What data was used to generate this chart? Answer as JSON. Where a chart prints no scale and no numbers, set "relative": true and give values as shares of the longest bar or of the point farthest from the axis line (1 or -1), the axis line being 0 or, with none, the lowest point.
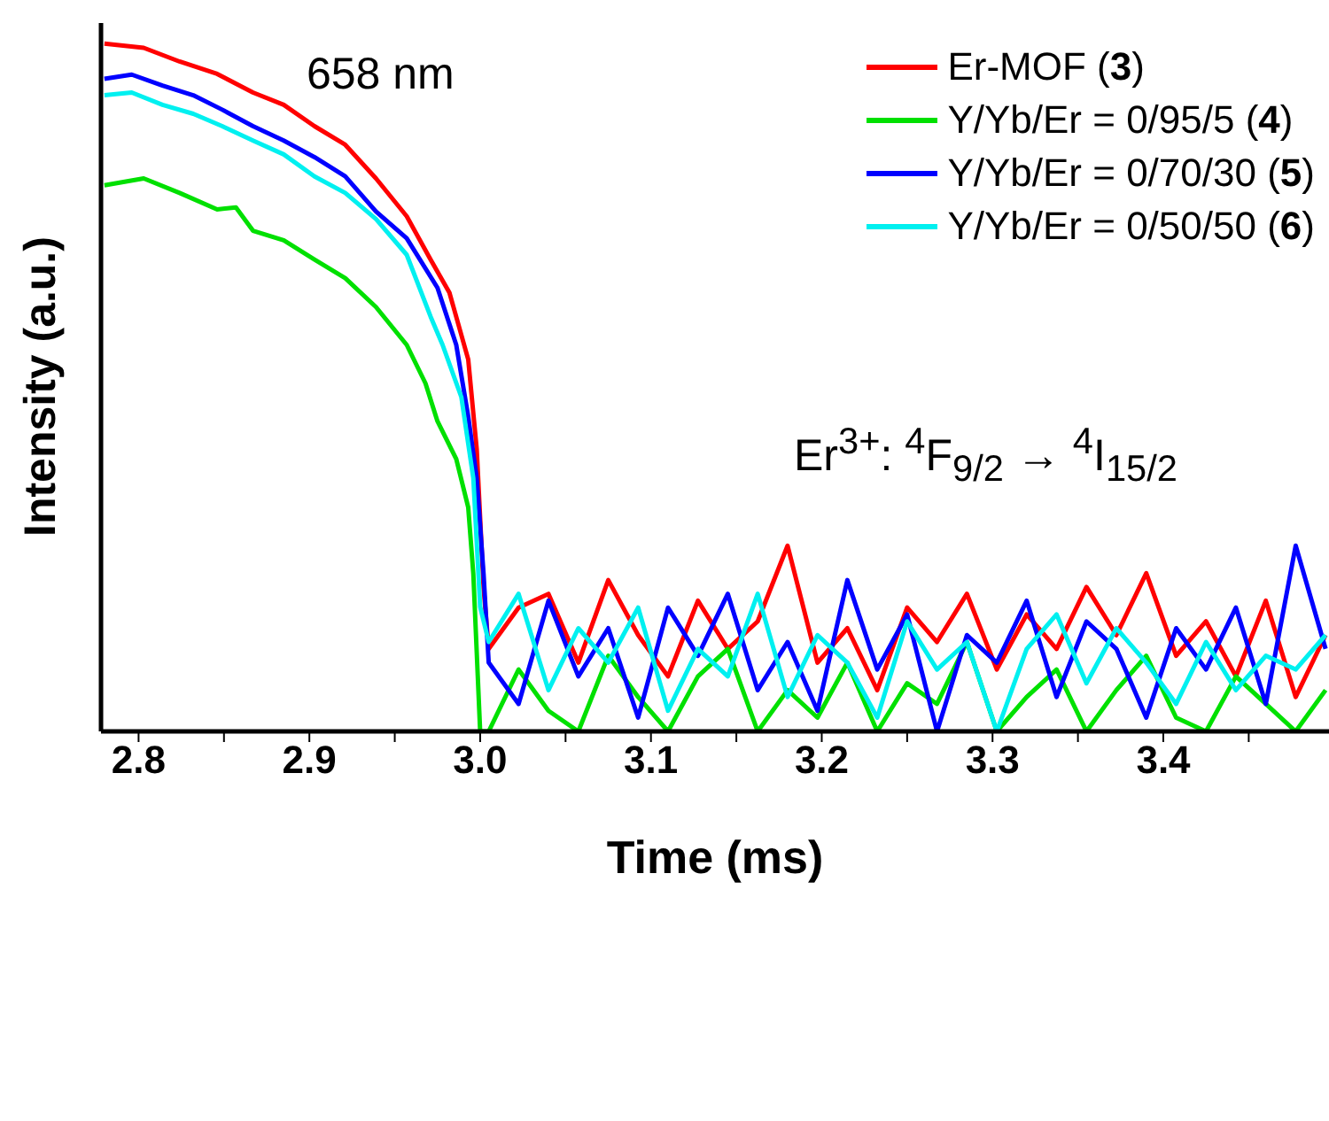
{
  "chart_data": {
    "type": "line",
    "relative": true,
    "xlabel": "Time (ms)",
    "ylabel": "Intensity (a.u.)",
    "xlim": [
      2.778,
      3.497
    ],
    "xticks": [
      2.8,
      {
        "value": 2.85,
        "label": null
      },
      2.9,
      {
        "value": 2.95,
        "label": null
      },
      "3.0",
      {
        "value": 3.05,
        "label": null
      },
      3.1,
      {
        "value": 3.15,
        "label": null
      },
      3.2,
      {
        "value": 3.25,
        "label": null
      },
      3.3,
      {
        "value": 3.35,
        "label": null
      },
      3.4,
      {
        "value": 3.45,
        "label": null
      }
    ],
    "legend": "top right",
    "marker": "none",
    "line_style": "solid",
    "annotations": [
      "658 nm",
      "Er$^{3+}$: $^{4}$F$_{9/2}$ → $^{4}$I$_{15/2}$"
    ],
    "series": [
      {
        "name": "Er-MOF (3)",
        "color": "#ff0000",
        "x": [
          2.78,
          2.803,
          2.824,
          2.846,
          2.867,
          2.885,
          2.903,
          2.921,
          2.939,
          2.957,
          2.971,
          2.982,
          2.993,
          2.998,
          3.002,
          3.005,
          3.0225,
          3.04,
          3.0575,
          3.075,
          3.0925,
          3.11,
          3.1275,
          3.145,
          3.1625,
          3.18,
          3.1975,
          3.215,
          3.2325,
          3.25,
          3.2675,
          3.285,
          3.3025,
          3.32,
          3.3375,
          3.355,
          3.3725,
          3.39,
          3.4075,
          3.425,
          3.4425,
          3.46,
          3.4775,
          3.495
        ],
        "values": [
          1.0,
          0.994,
          0.974,
          0.956,
          0.929,
          0.911,
          0.88,
          0.853,
          0.804,
          0.749,
          0.686,
          0.638,
          0.541,
          0.41,
          0.209,
          0.12,
          0.18,
          0.2,
          0.1,
          0.22,
          0.14,
          0.08,
          0.19,
          0.12,
          0.16,
          0.27,
          0.1,
          0.15,
          0.06,
          0.18,
          0.13,
          0.2,
          0.09,
          0.17,
          0.12,
          0.21,
          0.14,
          0.23,
          0.11,
          0.16,
          0.08,
          0.19,
          0.05,
          0.14
        ]
      },
      {
        "name": "Y/Yb/Er = 0/95/5 (4)",
        "color": "#00e000",
        "x": [
          2.78,
          2.803,
          2.824,
          2.846,
          2.857,
          2.867,
          2.885,
          2.903,
          2.921,
          2.939,
          2.957,
          2.968,
          2.975,
          2.986,
          2.993,
          2.996,
          3.0,
          3.005,
          3.0225,
          3.04,
          3.0575,
          3.075,
          3.0925,
          3.11,
          3.1275,
          3.145,
          3.1625,
          3.18,
          3.1975,
          3.215,
          3.2325,
          3.25,
          3.2675,
          3.285,
          3.3025,
          3.32,
          3.3375,
          3.355,
          3.3725,
          3.39,
          3.4075,
          3.425,
          3.4425,
          3.46,
          3.4775,
          3.495
        ],
        "values": [
          0.794,
          0.804,
          0.783,
          0.759,
          0.762,
          0.728,
          0.714,
          0.686,
          0.659,
          0.617,
          0.562,
          0.506,
          0.451,
          0.396,
          0.326,
          0.229,
          0.0,
          0.0,
          0.09,
          0.03,
          0.0,
          0.11,
          0.05,
          0.0,
          0.08,
          0.12,
          0.0,
          0.06,
          0.02,
          0.1,
          0.0,
          0.07,
          0.04,
          0.13,
          0.0,
          0.05,
          0.09,
          0.0,
          0.06,
          0.11,
          0.02,
          0.0,
          0.08,
          0.04,
          0.0,
          0.06
        ]
      },
      {
        "name": "Y/Yb/Er = 0/70/30 (5)",
        "color": "#0000ff",
        "x": [
          2.78,
          2.796,
          2.814,
          2.832,
          2.849,
          2.867,
          2.885,
          2.903,
          2.921,
          2.939,
          2.957,
          2.975,
          2.986,
          2.993,
          2.998,
          3.002,
          3.005,
          3.0225,
          3.04,
          3.0575,
          3.075,
          3.0925,
          3.11,
          3.1275,
          3.145,
          3.1625,
          3.18,
          3.1975,
          3.215,
          3.2325,
          3.25,
          3.2675,
          3.285,
          3.3025,
          3.32,
          3.3375,
          3.355,
          3.3725,
          3.39,
          3.4075,
          3.425,
          3.4425,
          3.46,
          3.4775,
          3.495
        ],
        "values": [
          0.949,
          0.955,
          0.939,
          0.925,
          0.904,
          0.88,
          0.859,
          0.835,
          0.807,
          0.756,
          0.717,
          0.645,
          0.562,
          0.458,
          0.368,
          0.229,
          0.1,
          0.04,
          0.19,
          0.08,
          0.15,
          0.02,
          0.18,
          0.11,
          0.2,
          0.06,
          0.13,
          0.03,
          0.22,
          0.09,
          0.17,
          0.0,
          0.14,
          0.1,
          0.19,
          0.05,
          0.16,
          0.12,
          0.02,
          0.15,
          0.09,
          0.18,
          0.04,
          0.27,
          0.12
        ]
      },
      {
        "name": "Y/Yb/Er = 0/50/50 (6)",
        "color": "#00f0f0",
        "x": [
          2.78,
          2.796,
          2.814,
          2.832,
          2.849,
          2.867,
          2.885,
          2.903,
          2.921,
          2.939,
          2.957,
          2.971,
          2.978,
          2.989,
          2.996,
          3.0,
          3.005,
          3.0225,
          3.04,
          3.0575,
          3.075,
          3.0925,
          3.11,
          3.1275,
          3.145,
          3.1625,
          3.18,
          3.1975,
          3.215,
          3.2325,
          3.25,
          3.2675,
          3.285,
          3.3025,
          3.32,
          3.3375,
          3.355,
          3.3725,
          3.39,
          3.4075,
          3.425,
          3.4425,
          3.46,
          3.4775,
          3.495
        ],
        "values": [
          0.925,
          0.929,
          0.911,
          0.898,
          0.88,
          0.859,
          0.839,
          0.807,
          0.783,
          0.745,
          0.693,
          0.603,
          0.562,
          0.486,
          0.368,
          0.181,
          0.13,
          0.2,
          0.06,
          0.15,
          0.1,
          0.18,
          0.03,
          0.12,
          0.08,
          0.2,
          0.05,
          0.14,
          0.1,
          0.02,
          0.16,
          0.09,
          0.13,
          0.0,
          0.12,
          0.17,
          0.07,
          0.15,
          0.1,
          0.04,
          0.13,
          0.06,
          0.11,
          0.09,
          0.14
        ]
      }
    ]
  }
}
